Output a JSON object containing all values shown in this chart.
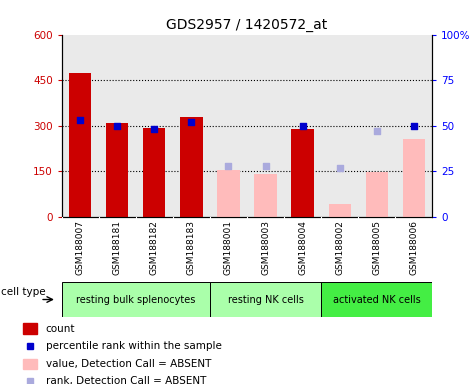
{
  "title": "GDS2957 / 1420572_at",
  "samples": [
    "GSM188007",
    "GSM188181",
    "GSM188182",
    "GSM188183",
    "GSM188001",
    "GSM188003",
    "GSM188004",
    "GSM188002",
    "GSM188005",
    "GSM188006"
  ],
  "count_values": [
    475,
    308,
    292,
    330,
    null,
    null,
    290,
    null,
    null,
    null
  ],
  "count_absent_values": [
    null,
    null,
    null,
    null,
    153,
    140,
    null,
    43,
    148,
    258
  ],
  "percentile_values": [
    53,
    50,
    48,
    52,
    null,
    null,
    50,
    null,
    null,
    50
  ],
  "percentile_absent_values": [
    null,
    null,
    null,
    null,
    28,
    28,
    null,
    27,
    47,
    null
  ],
  "ylim_left": [
    0,
    600
  ],
  "ylim_right": [
    0,
    100
  ],
  "yticks_left": [
    0,
    150,
    300,
    450,
    600
  ],
  "yticks_right": [
    0,
    25,
    50,
    75,
    100
  ],
  "ytick_labels_left": [
    "0",
    "150",
    "300",
    "450",
    "600"
  ],
  "ytick_labels_right": [
    "0",
    "25",
    "50",
    "75",
    "100%"
  ],
  "cell_type_groups": [
    {
      "label": "resting bulk splenocytes",
      "start": 0,
      "end": 4
    },
    {
      "label": "resting NK cells",
      "start": 4,
      "end": 7
    },
    {
      "label": "activated NK cells",
      "start": 7,
      "end": 10
    }
  ],
  "group_colors": [
    "#aaffaa",
    "#aaffaa",
    "#44ee44"
  ],
  "cell_type_label": "cell type",
  "bar_color_present": "#cc0000",
  "bar_color_absent": "#ffbbbb",
  "dot_color_present": "#0000cc",
  "dot_color_absent": "#aaaadd",
  "bg_color_samples": "#cccccc",
  "legend": [
    {
      "label": "count",
      "color": "#cc0000",
      "type": "bar"
    },
    {
      "label": "percentile rank within the sample",
      "color": "#0000cc",
      "type": "dot"
    },
    {
      "label": "value, Detection Call = ABSENT",
      "color": "#ffbbbb",
      "type": "bar"
    },
    {
      "label": "rank, Detection Call = ABSENT",
      "color": "#aaaadd",
      "type": "dot"
    }
  ]
}
